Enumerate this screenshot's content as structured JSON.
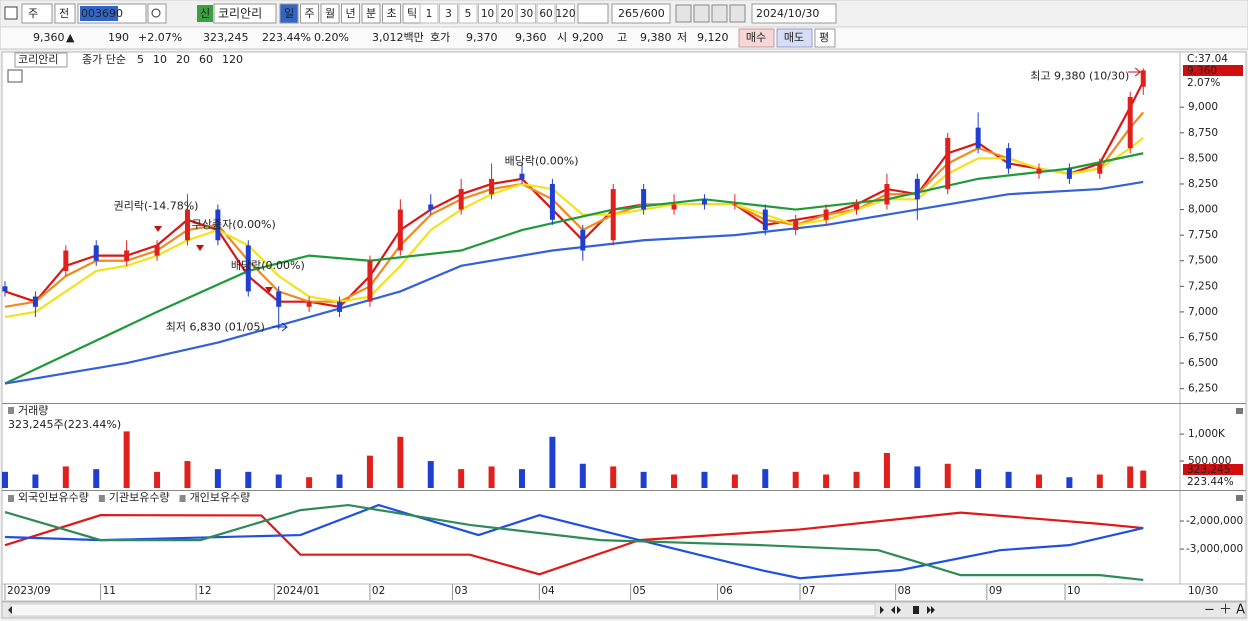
{
  "toolbar": {
    "market": "주",
    "scope": "전",
    "code": "003690",
    "badge": "신",
    "name": "코리안리",
    "periods": [
      "일",
      "주",
      "월",
      "년",
      "분",
      "초",
      "틱"
    ],
    "intervals": [
      "1",
      "3",
      "5",
      "10",
      "20",
      "30",
      "60",
      "120"
    ],
    "count": "265",
    "max_count": "/600",
    "date": "2024/10/30"
  },
  "quote": {
    "price": "9,360",
    "arrow": "▲",
    "change": "190",
    "change_pct": "+2.07%",
    "volume": "323,245",
    "volume_pct": "223.44%",
    "turnover": "0.20%",
    "amount": "3,012백만",
    "ask_label": "호가",
    "ask": "9,370",
    "bid": "9,360",
    "open_label": "시",
    "open": "9,200",
    "high_label": "고",
    "high": "9,380",
    "low_label": "저",
    "low": "9,120",
    "buy": "매수",
    "sell": "매도",
    "avg": "평"
  },
  "chart_data": [
    {
      "type": "candlestick",
      "legend_title": "코리안리",
      "legend_label": "종가 단순",
      "x": [
        0,
        7,
        14,
        21,
        28,
        35,
        42,
        49,
        56,
        63,
        70,
        77,
        84,
        91,
        98,
        105,
        112,
        119,
        126,
        133,
        140,
        147,
        154,
        161,
        168,
        175,
        182,
        189,
        196,
        203,
        210,
        217,
        224,
        231,
        238,
        245,
        252,
        259,
        262
      ],
      "open": [
        7250,
        7150,
        7400,
        7650,
        7500,
        7550,
        7700,
        8000,
        7650,
        7200,
        7050,
        7100,
        7100,
        7600,
        8050,
        8000,
        8150,
        8350,
        8250,
        7800,
        7700,
        8200,
        8000,
        8100,
        8050,
        8000,
        7800,
        7900,
        8000,
        8050,
        8300,
        8200,
        8800,
        8600,
        8350,
        8400,
        8350,
        8600,
        9200
      ],
      "high": [
        7300,
        7200,
        7650,
        7700,
        7700,
        7700,
        8150,
        8050,
        7700,
        7250,
        7150,
        7150,
        7550,
        8100,
        8150,
        8300,
        8450,
        8450,
        8300,
        7850,
        8250,
        8250,
        8150,
        8150,
        8150,
        8050,
        7950,
        8050,
        8100,
        8350,
        8350,
        8750,
        8950,
        8650,
        8450,
        8450,
        8500,
        9150,
        9380
      ],
      "low": [
        7150,
        6950,
        7350,
        7450,
        7450,
        7500,
        7650,
        7650,
        7150,
        6830,
        7000,
        6950,
        7050,
        7550,
        7950,
        7950,
        8100,
        8250,
        7850,
        7500,
        7650,
        7950,
        7950,
        8000,
        8000,
        7750,
        7750,
        7850,
        7950,
        8000,
        7900,
        8150,
        8550,
        8350,
        8300,
        8250,
        8300,
        8550,
        9120
      ],
      "close": [
        7200,
        7050,
        7600,
        7500,
        7600,
        7650,
        8000,
        7700,
        7200,
        7050,
        7100,
        7000,
        7500,
        8000,
        8000,
        8200,
        8300,
        8300,
        7900,
        7600,
        8200,
        8000,
        8050,
        8050,
        8050,
        7800,
        7900,
        8000,
        8050,
        8250,
        8100,
        8700,
        8600,
        8400,
        8400,
        8300,
        8450,
        9100,
        9360
      ],
      "up_color": "#e0201c",
      "down_color": "#1f3fd0",
      "moving_averages": [
        {
          "name": "5",
          "color": "#d81818",
          "x": [
            0,
            7,
            14,
            21,
            28,
            35,
            42,
            49,
            56,
            63,
            70,
            77,
            84,
            91,
            98,
            105,
            112,
            119,
            126,
            133,
            140,
            147,
            154,
            161,
            168,
            175,
            182,
            189,
            196,
            203,
            210,
            217,
            224,
            231,
            238,
            245,
            252,
            259,
            262
          ],
          "values": [
            7200,
            7100,
            7450,
            7550,
            7550,
            7650,
            7900,
            7800,
            7350,
            7100,
            7100,
            7050,
            7350,
            7800,
            8000,
            8150,
            8250,
            8300,
            8000,
            7700,
            8000,
            8050,
            8050,
            8050,
            8050,
            7850,
            7900,
            7950,
            8050,
            8200,
            8150,
            8550,
            8650,
            8450,
            8400,
            8350,
            8450,
            9000,
            9250
          ]
        },
        {
          "name": "10",
          "color": "#f08a1c",
          "x": [
            0,
            7,
            14,
            21,
            28,
            35,
            42,
            49,
            56,
            63,
            70,
            77,
            84,
            91,
            98,
            105,
            112,
            119,
            126,
            133,
            140,
            147,
            154,
            161,
            168,
            175,
            182,
            189,
            196,
            203,
            210,
            217,
            224,
            231,
            238,
            245,
            252,
            259,
            262
          ],
          "values": [
            7050,
            7100,
            7350,
            7500,
            7500,
            7600,
            7800,
            7850,
            7500,
            7200,
            7100,
            7100,
            7250,
            7650,
            7950,
            8100,
            8200,
            8250,
            8100,
            7800,
            7950,
            8050,
            8050,
            8050,
            8050,
            7900,
            7850,
            7950,
            8000,
            8150,
            8150,
            8450,
            8600,
            8500,
            8400,
            8350,
            8400,
            8800,
            8950
          ]
        },
        {
          "name": "20",
          "color": "#f2e21a",
          "x": [
            0,
            7,
            14,
            21,
            28,
            35,
            42,
            49,
            56,
            63,
            70,
            77,
            84,
            91,
            98,
            105,
            112,
            119,
            126,
            133,
            140,
            147,
            154,
            161,
            168,
            175,
            182,
            189,
            196,
            203,
            210,
            217,
            224,
            231,
            238,
            245,
            252,
            259,
            262
          ],
          "values": [
            6950,
            7000,
            7200,
            7400,
            7450,
            7550,
            7700,
            7800,
            7650,
            7350,
            7150,
            7100,
            7150,
            7450,
            7800,
            8000,
            8150,
            8250,
            8200,
            7950,
            7950,
            8000,
            8050,
            8050,
            8050,
            7950,
            7850,
            7900,
            8000,
            8100,
            8100,
            8350,
            8500,
            8500,
            8400,
            8350,
            8400,
            8600,
            8700
          ]
        },
        {
          "name": "60",
          "color": "#1e9a3a",
          "x": [
            0,
            35,
            56,
            70,
            84,
            105,
            119,
            140,
            161,
            182,
            203,
            224,
            245,
            262
          ],
          "values": [
            6300,
            7000,
            7400,
            7550,
            7500,
            7600,
            7800,
            8000,
            8100,
            8000,
            8100,
            8300,
            8400,
            8550
          ]
        },
        {
          "name": "120",
          "color": "#3460d8",
          "x": [
            0,
            28,
            49,
            70,
            91,
            105,
            126,
            147,
            168,
            189,
            210,
            231,
            252,
            262
          ],
          "values": [
            6300,
            6500,
            6700,
            6950,
            7200,
            7450,
            7600,
            7700,
            7750,
            7850,
            8000,
            8150,
            8200,
            8270
          ]
        }
      ],
      "annotations": [
        {
          "text": "최고 9,380 (10/30)",
          "x": 236,
          "y": 9300
        },
        {
          "text": "최저 6,830 (01/05)",
          "x": 37,
          "y": 6850
        },
        {
          "text": "권리락(-14.78%)",
          "x": 25,
          "y": 8030
        },
        {
          "text": "무상증자(0.00%)",
          "x": 43,
          "y": 7850
        },
        {
          "text": "배당락(0.00%)",
          "x": 52,
          "y": 7450
        },
        {
          "text": "배당락(0.00%)",
          "x": 115,
          "y": 8470
        }
      ],
      "right_header": "C:37.04",
      "last_value_label": "9,360",
      "change_label": "2.07%",
      "xlim": [
        0,
        270
      ],
      "ylim": [
        6110,
        9510
      ],
      "yticks": [
        {
          "value": 6250,
          "label": "6,250"
        },
        {
          "value": 6500,
          "label": "6,500"
        },
        {
          "value": 6750,
          "label": "6,750"
        },
        {
          "value": 7000,
          "label": "7,000"
        },
        {
          "value": 7250,
          "label": "7,250"
        },
        {
          "value": 7500,
          "label": "7,500"
        },
        {
          "value": 7750,
          "label": "7,750"
        },
        {
          "value": 8000,
          "label": "8,000"
        },
        {
          "value": 8250,
          "label": "8,250"
        },
        {
          "value": 8500,
          "label": "8,500"
        },
        {
          "value": 8750,
          "label": "8,750"
        },
        {
          "value": 9000,
          "label": "9,000"
        }
      ]
    },
    {
      "type": "bar",
      "title": "거래량",
      "subtitle": "323,245주(223.44%)",
      "x": [
        0,
        7,
        14,
        21,
        28,
        35,
        42,
        49,
        56,
        63,
        70,
        77,
        84,
        91,
        98,
        105,
        112,
        119,
        126,
        133,
        140,
        147,
        154,
        161,
        168,
        175,
        182,
        189,
        196,
        203,
        210,
        217,
        224,
        231,
        238,
        245,
        252,
        259,
        262
      ],
      "values": [
        300000,
        250000,
        400000,
        350000,
        1050000,
        300000,
        500000,
        350000,
        300000,
        250000,
        200000,
        250000,
        600000,
        950000,
        500000,
        350000,
        400000,
        350000,
        950000,
        450000,
        400000,
        300000,
        250000,
        300000,
        250000,
        350000,
        300000,
        250000,
        300000,
        650000,
        400000,
        450000,
        350000,
        300000,
        250000,
        200000,
        250000,
        400000,
        323245
      ],
      "last_value_label": "323,245",
      "last_pct_label": "223.44%",
      "xlim": [
        0,
        270
      ],
      "ylim": [
        0,
        1540000
      ],
      "yticks": [
        {
          "value": 1000000,
          "label": "1,000K"
        },
        {
          "value": 500000,
          "label": "500,000"
        }
      ]
    },
    {
      "type": "line",
      "series": [
        {
          "name": "외국인보유수량",
          "color": "#e01818",
          "x": [
            0,
            22,
            59,
            68,
            107,
            123,
            146,
            183,
            220,
            252,
            262
          ],
          "values": [
            -2860000,
            -1790000,
            -1800000,
            -3200000,
            -3200000,
            -3900000,
            -2680000,
            -2300000,
            -1700000,
            -2100000,
            -2250000
          ]
        },
        {
          "name": "기관보유수량",
          "color": "#2050e0",
          "x": [
            0,
            22,
            68,
            86,
            109,
            123,
            146,
            174,
            183,
            206,
            229,
            245,
            262
          ],
          "values": [
            -2570000,
            -2680000,
            -2500000,
            -1430000,
            -2500000,
            -1790000,
            -2680000,
            -3750000,
            -4040000,
            -3750000,
            -3040000,
            -2860000,
            -2250000
          ]
        },
        {
          "name": "개인보유수량",
          "color": "#2e8b57",
          "x": [
            0,
            22,
            45,
            68,
            79,
            107,
            137,
            174,
            201,
            220,
            252,
            262
          ],
          "values": [
            -1680000,
            -2680000,
            -2680000,
            -1610000,
            -1430000,
            -2140000,
            -2680000,
            -2860000,
            -3040000,
            -3930000,
            -3930000,
            -4100000
          ]
        }
      ],
      "xlim": [
        0,
        270
      ],
      "ylim": [
        -4210000,
        -1000000
      ],
      "yticks": [
        {
          "value": -2000000,
          "label": "-2,000,000"
        },
        {
          "value": -3000000,
          "label": "-3,000,000"
        }
      ],
      "xticks": [
        {
          "value": 0,
          "label": "2023/09"
        },
        {
          "value": 22,
          "label": "11"
        },
        {
          "value": 44,
          "label": "12"
        },
        {
          "value": 62,
          "label": "2024/01"
        },
        {
          "value": 84,
          "label": "02"
        },
        {
          "value": 103,
          "label": "03"
        },
        {
          "value": 123,
          "label": "04"
        },
        {
          "value": 144,
          "label": "05"
        },
        {
          "value": 164,
          "label": "06"
        },
        {
          "value": 183,
          "label": "07"
        },
        {
          "value": 205,
          "label": "08"
        },
        {
          "value": 226,
          "label": "09"
        },
        {
          "value": 244,
          "label": "10"
        }
      ],
      "x_end_label": "10/30"
    }
  ]
}
